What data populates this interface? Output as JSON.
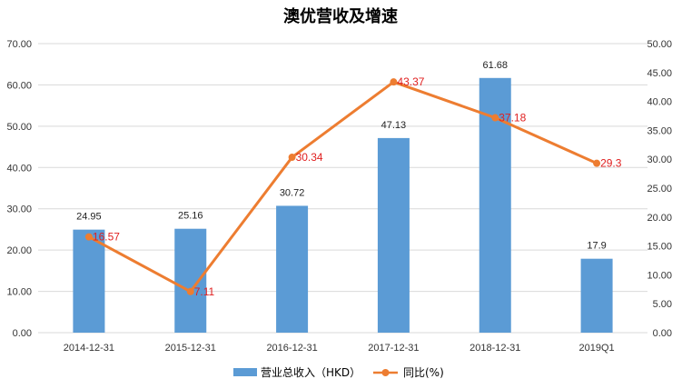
{
  "chart_data": {
    "type": "bar+line",
    "title": "澳优营收及增速",
    "categories": [
      "2014-12-31",
      "2015-12-31",
      "2016-12-31",
      "2017-12-31",
      "2018-12-31",
      "2019Q1"
    ],
    "series": [
      {
        "name": "营业总收入（HKD）",
        "type": "bar",
        "axis": "left",
        "values": [
          24.95,
          25.16,
          30.72,
          47.13,
          61.68,
          17.9
        ],
        "labels": [
          "24.95",
          "25.16",
          "30.72",
          "47.13",
          "61.68",
          "17.9"
        ],
        "color": "#5b9bd5"
      },
      {
        "name": "同比(%)",
        "type": "line",
        "axis": "right",
        "values": [
          16.57,
          7.11,
          30.34,
          43.37,
          37.18,
          29.3
        ],
        "labels": [
          "16.57",
          "7.11",
          "30.34",
          "43.37",
          "37.18",
          "29.3"
        ],
        "color": "#ed7d31",
        "label_color": "#e02020"
      }
    ],
    "y_left": {
      "ylim": [
        0,
        70
      ],
      "ticks": [
        "0.00",
        "10.00",
        "20.00",
        "30.00",
        "40.00",
        "50.00",
        "60.00",
        "70.00"
      ]
    },
    "y_right": {
      "ylim": [
        0,
        50
      ],
      "ticks": [
        "0.00",
        "5.00",
        "10.00",
        "15.00",
        "20.00",
        "25.00",
        "30.00",
        "35.00",
        "40.00",
        "45.00",
        "50.00"
      ]
    },
    "grid": true,
    "legend": "bottom"
  }
}
